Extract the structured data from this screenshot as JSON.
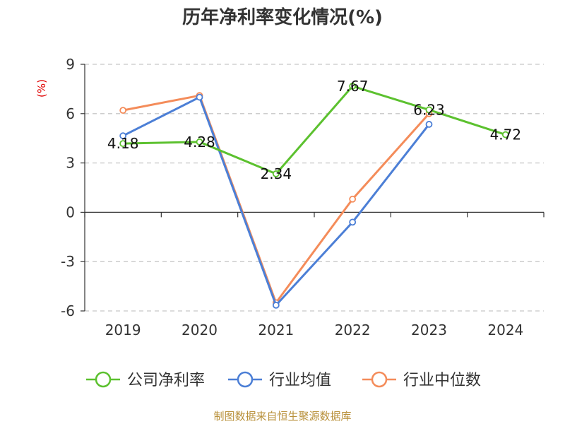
{
  "chart_data": {
    "type": "line",
    "title": "历年净利率变化情况(%)",
    "ylabel": "(%)",
    "x": [
      "2019",
      "2020",
      "2021",
      "2022",
      "2023",
      "2024"
    ],
    "yticks": [
      "-6",
      "-3",
      "0",
      "3",
      "6",
      "9"
    ],
    "ylim": [
      -6,
      9
    ],
    "grid": true,
    "legend_position": "bottom",
    "series": [
      {
        "name": "公司净利率",
        "color": "#5cc12f",
        "values": [
          4.18,
          4.28,
          2.34,
          7.67,
          6.23,
          4.72
        ],
        "labels": [
          "4.18",
          "4.28",
          "2.34",
          "7.67",
          "6.23",
          "4.72"
        ]
      },
      {
        "name": "行业均值",
        "color": "#4c7fd6",
        "values": [
          4.65,
          7.0,
          -5.65,
          -0.6,
          5.35,
          null
        ]
      },
      {
        "name": "行业中位数",
        "color": "#f48c5a",
        "values": [
          6.2,
          7.1,
          -5.5,
          0.8,
          6.0,
          null
        ]
      }
    ]
  },
  "source": "制图数据来自恒生聚源数据库"
}
